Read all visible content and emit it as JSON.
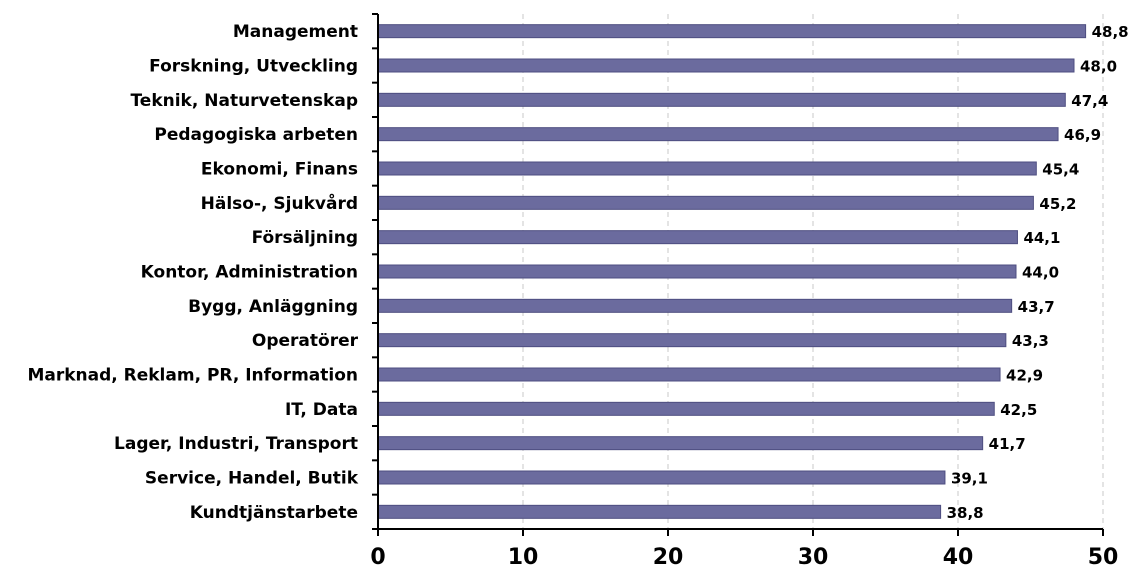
{
  "chart_data": {
    "type": "bar",
    "orientation": "horizontal",
    "categories": [
      "Management",
      "Forskning, Utveckling",
      "Teknik, Naturvetenskap",
      "Pedagogiska arbeten",
      "Ekonomi, Finans",
      "Hälso-, Sjukvård",
      "Försäljning",
      "Kontor, Administration",
      "Bygg, Anläggning",
      "Operatörer",
      "Marknad, Reklam, PR, Information",
      "IT, Data",
      "Lager, Industri, Transport",
      "Service, Handel, Butik",
      "Kundtjänstarbete"
    ],
    "values": [
      48.8,
      48.0,
      47.4,
      46.9,
      45.4,
      45.2,
      44.1,
      44.0,
      43.7,
      43.3,
      42.9,
      42.5,
      41.7,
      39.1,
      38.8
    ],
    "value_labels": [
      "48,8",
      "48,0",
      "47,4",
      "46,9",
      "45,4",
      "45,2",
      "44,1",
      "44,0",
      "43,7",
      "43,3",
      "42,9",
      "42,5",
      "41,7",
      "39,1",
      "38,8"
    ],
    "xlim": [
      0,
      50
    ],
    "xticks": [
      0,
      10,
      20,
      30,
      40,
      50
    ],
    "xtick_labels": [
      "0",
      "10",
      "20",
      "30",
      "40",
      "50"
    ],
    "grid": "vertical-dashed",
    "legend": "none",
    "title": "",
    "xlabel": "",
    "ylabel": "",
    "colors": {
      "bar": "#6b6b9e",
      "bar_edge": "#4e4e80",
      "grid": "#c8c8c8"
    }
  }
}
